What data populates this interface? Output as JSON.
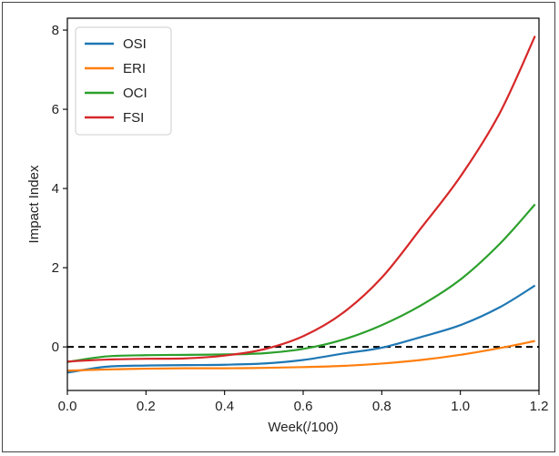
{
  "chart_data": {
    "type": "line",
    "title": "",
    "xlabel": "Week(/100)",
    "ylabel": "Impact Index",
    "xlim": [
      0.0,
      1.2
    ],
    "ylim": [
      -1.1,
      8.3
    ],
    "xticks": [
      0.0,
      0.2,
      0.4,
      0.6,
      0.8,
      1.0,
      1.2
    ],
    "xtick_labels": [
      "0.0",
      "0.2",
      "0.4",
      "0.6",
      "0.8",
      "1.0",
      "1.2"
    ],
    "yticks": [
      0,
      2,
      4,
      6,
      8
    ],
    "ytick_labels": [
      "0",
      "2",
      "4",
      "6",
      "8"
    ],
    "grid": false,
    "legend_position": "top-left",
    "reference_line": {
      "y": 0,
      "style": "dashed",
      "color": "#000000"
    },
    "x": [
      0.0,
      0.1,
      0.2,
      0.3,
      0.4,
      0.5,
      0.6,
      0.7,
      0.8,
      0.9,
      1.0,
      1.1,
      1.19
    ],
    "series": [
      {
        "name": "OSI",
        "color": "#1f77b4",
        "values": [
          -0.65,
          -0.5,
          -0.47,
          -0.46,
          -0.45,
          -0.42,
          -0.33,
          -0.17,
          -0.02,
          0.25,
          0.55,
          1.0,
          1.55
        ]
      },
      {
        "name": "ERI",
        "color": "#ff7f0e",
        "values": [
          -0.6,
          -0.57,
          -0.55,
          -0.54,
          -0.54,
          -0.53,
          -0.51,
          -0.48,
          -0.42,
          -0.33,
          -0.2,
          -0.03,
          0.15
        ]
      },
      {
        "name": "OCI",
        "color": "#2ca02c",
        "values": [
          -0.38,
          -0.24,
          -0.21,
          -0.2,
          -0.19,
          -0.16,
          -0.05,
          0.18,
          0.55,
          1.05,
          1.7,
          2.6,
          3.6
        ]
      },
      {
        "name": "FSI",
        "color": "#d62728",
        "values": [
          -0.37,
          -0.32,
          -0.3,
          -0.29,
          -0.22,
          -0.06,
          0.27,
          0.85,
          1.75,
          3.0,
          4.3,
          5.9,
          7.85
        ]
      }
    ]
  }
}
